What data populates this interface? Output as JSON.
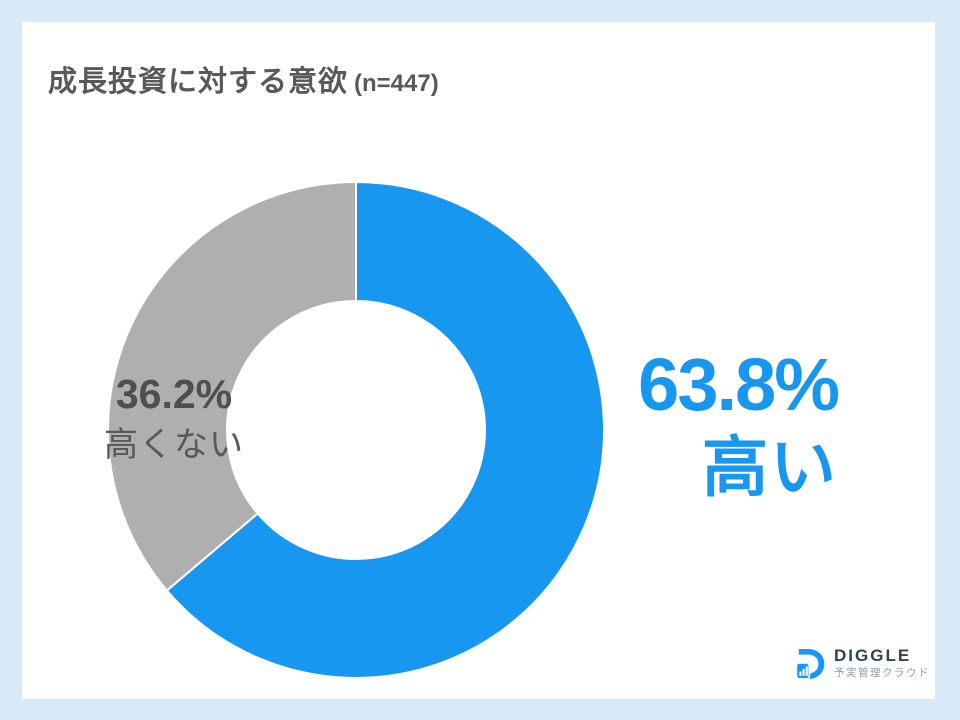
{
  "header": {
    "title": "成長投資に対する意欲",
    "sample": "(n=447)"
  },
  "chart_data": {
    "type": "pie",
    "subtype": "donut",
    "title": "成長投資に対する意欲 (n=447)",
    "n_label": "n=447",
    "slices": [
      {
        "label": "高い",
        "value": 63.8,
        "display": "63.8%",
        "color": "#1797f0"
      },
      {
        "label": "高くない",
        "value": 36.2,
        "display": "36.2%",
        "color": "#afafaf"
      }
    ],
    "start_angle_deg": 0,
    "direction": "clockwise",
    "inner_radius_ratio": 0.52,
    "outer_radius_px": 248,
    "slice_border_color": "#ffffff",
    "legend_position": "labels-beside-slices"
  },
  "logo": {
    "name": "DIGGLE",
    "tagline": "予実管理クラウド",
    "icon": "diggle-d-barchart-icon"
  },
  "colors": {
    "background": "#d9eaf9",
    "card": "#ffffff",
    "accent_blue": "#1797f0",
    "neutral_gray": "#afafaf",
    "title_text": "#595959"
  }
}
